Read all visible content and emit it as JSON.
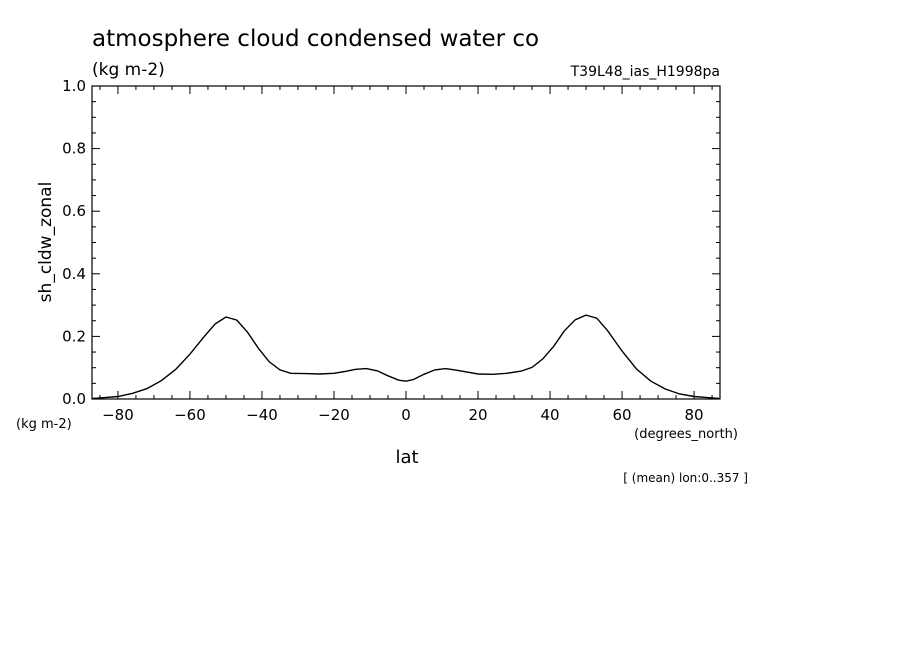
{
  "chart_data": {
    "type": "line",
    "title": "atmosphere cloud condensed water co",
    "subtitle": "(kg m-2)",
    "dataset_label": "T39L48_ias_H1998pa",
    "ylabel": "sh_cldw_zonal",
    "yunits": "(kg m-2)",
    "xlabel": "lat",
    "xunits": "(degrees_north)",
    "footnote": "[ (mean) lon:0..357 ]",
    "xlim": [
      -87.2,
      87.2
    ],
    "ylim": [
      0,
      1.0
    ],
    "xticks": [
      -80,
      -60,
      -40,
      -20,
      0,
      20,
      40,
      60,
      80
    ],
    "xtick_labels": [
      "-80",
      "-60",
      "-40",
      "-20",
      "0",
      "20",
      "40",
      "60",
      "80"
    ],
    "yticks": [
      0.0,
      0.2,
      0.4,
      0.6,
      0.8,
      1.0
    ],
    "ytick_labels": [
      "0.0",
      "0.2",
      "0.4",
      "0.6",
      "0.8",
      "1.0"
    ],
    "grid": false,
    "x": [
      -87,
      -84,
      -80,
      -76,
      -72,
      -68,
      -64,
      -60,
      -56,
      -53,
      -50,
      -47,
      -44,
      -41,
      -38,
      -35,
      -32,
      -28,
      -24,
      -20,
      -17,
      -14,
      -11,
      -8,
      -5,
      -2,
      0,
      2,
      5,
      8,
      11,
      14,
      17,
      20,
      24,
      28,
      32,
      35,
      38,
      41,
      44,
      47,
      50,
      53,
      56,
      60,
      64,
      68,
      72,
      76,
      80,
      84,
      87
    ],
    "y": [
      0.002,
      0.004,
      0.008,
      0.018,
      0.033,
      0.058,
      0.094,
      0.143,
      0.2,
      0.24,
      0.262,
      0.252,
      0.213,
      0.162,
      0.119,
      0.093,
      0.082,
      0.081,
      0.08,
      0.082,
      0.088,
      0.095,
      0.097,
      0.09,
      0.074,
      0.06,
      0.057,
      0.062,
      0.079,
      0.093,
      0.097,
      0.092,
      0.086,
      0.08,
      0.079,
      0.082,
      0.089,
      0.101,
      0.128,
      0.168,
      0.218,
      0.253,
      0.268,
      0.258,
      0.218,
      0.153,
      0.096,
      0.057,
      0.032,
      0.016,
      0.008,
      0.004,
      0.002
    ],
    "series": [
      {
        "name": "sh_cldw_zonal"
      }
    ],
    "line_color": "#000000"
  }
}
